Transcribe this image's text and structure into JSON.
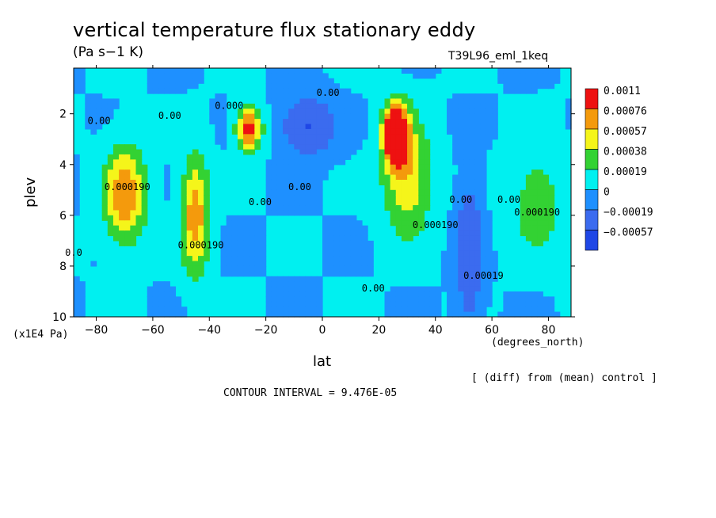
{
  "chart_data": {
    "type": "heatmap",
    "title": "vertical temperature flux stationary eddy",
    "units": "(Pa s−1 K)",
    "run_label": "T39L96_eml_1keq",
    "xlabel": "lat",
    "xunit": "(degrees_north)",
    "ylabel": "plev",
    "yunit": "(x1E4 Pa)",
    "xlim": [
      -88,
      88
    ],
    "ylim": [
      10,
      0.2
    ],
    "xticks": [
      "−80",
      "−60",
      "−40",
      "−20",
      "0",
      "20",
      "40",
      "60",
      "80"
    ],
    "xtick_values": [
      -80,
      -60,
      -40,
      -20,
      0,
      20,
      40,
      60,
      80
    ],
    "yticks": [
      "2",
      "4",
      "6",
      "8",
      "10"
    ],
    "ytick_values": [
      2,
      4,
      6,
      8,
      10
    ],
    "note": "[ (diff) from (mean) control ]",
    "contour_interval": "CONTOUR INTERVAL = 9.476E-05",
    "legend": {
      "labels": [
        "0.0011",
        "0.00076",
        "0.00057",
        "0.00038",
        "0.00019",
        "0",
        "−0.00019",
        "−0.00057"
      ],
      "colors": [
        "#ee1111",
        "#f49a0c",
        "#f5f51a",
        "#33d233",
        "#00f0f0",
        "#1e90ff",
        "#3b6bef",
        "#1f47e6"
      ]
    },
    "levels": [
      -0.00057,
      -0.00019,
      0,
      0.00019,
      0.00038,
      0.00057,
      0.00076,
      0.0011
    ],
    "features": [
      {
        "lat": -70,
        "plev": 5.2,
        "amp": 0.00075,
        "wlat": 5,
        "wp": 1.3
      },
      {
        "lat": -45,
        "plev": 6.0,
        "amp": 0.0007,
        "wlat": 3.5,
        "wp": 1.6
      },
      {
        "lat": -26,
        "plev": 2.6,
        "amp": 0.0009,
        "wlat": 3,
        "wp": 0.6
      },
      {
        "lat": -5,
        "plev": 2.5,
        "amp": -0.0006,
        "wlat": 6,
        "wp": 0.7
      },
      {
        "lat": 26,
        "plev": 2.8,
        "amp": 0.0013,
        "wlat": 3,
        "wp": 0.8
      },
      {
        "lat": 30,
        "plev": 4.5,
        "amp": 0.00055,
        "wlat": 6,
        "wp": 1.6
      },
      {
        "lat": 52,
        "plev": 7.5,
        "amp": -0.0005,
        "wlat": 3,
        "wp": 1.8
      },
      {
        "lat": 76,
        "plev": 5.5,
        "amp": 0.0003,
        "wlat": 7,
        "wp": 1.5
      }
    ],
    "contour_labels": [
      {
        "text": "0.00",
        "lat": 2,
        "plev": 1.3
      },
      {
        "text": "0.00",
        "lat": -79,
        "plev": 2.4
      },
      {
        "text": "0.00",
        "lat": -54,
        "plev": 2.2
      },
      {
        "text": "0.000",
        "lat": -33,
        "plev": 1.8
      },
      {
        "text": "0.00",
        "lat": -22,
        "plev": 5.6
      },
      {
        "text": "0.00",
        "lat": -8,
        "plev": 5.0
      },
      {
        "text": "0.00",
        "lat": 18,
        "plev": 9.0
      },
      {
        "text": "0.000190",
        "lat": -69,
        "plev": 5.0
      },
      {
        "text": "0.000190",
        "lat": -43,
        "plev": 7.3
      },
      {
        "text": "0.000190",
        "lat": 40,
        "plev": 6.5
      },
      {
        "text": "0.00",
        "lat": 49,
        "plev": 5.5
      },
      {
        "text": "0.00",
        "lat": 66,
        "plev": 5.5
      },
      {
        "text": "0.000190",
        "lat": 76,
        "plev": 6.0
      },
      {
        "text": "0.00019",
        "lat": 57,
        "plev": 8.5
      },
      {
        "text": "0.0",
        "lat": -88,
        "plev": 7.6
      }
    ]
  }
}
